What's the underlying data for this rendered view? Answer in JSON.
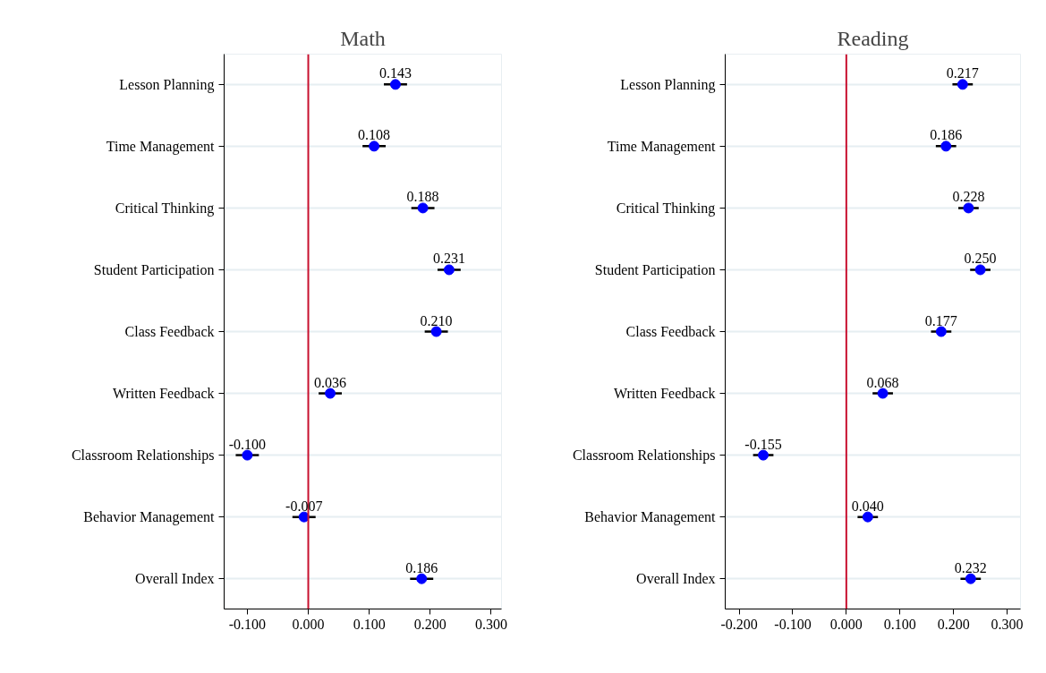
{
  "chart_data": [
    {
      "type": "scatter",
      "title": "Math",
      "categories": [
        "Lesson Planning",
        "Time Management",
        "Critical Thinking",
        "Student Participation",
        "Class Feedback",
        "Written Feedback",
        "Classroom Relationships",
        "Behavior Management",
        "Overall Index"
      ],
      "series": [
        {
          "color": "#0000ff",
          "values": [
            0.143,
            0.108,
            0.188,
            0.231,
            0.21,
            0.036,
            -0.1,
            -0.007,
            0.186
          ],
          "value_labels": [
            "0.143",
            "0.108",
            "0.188",
            "0.231",
            "0.210",
            "0.036",
            "-0.100",
            "-0.007",
            "0.186"
          ],
          "errors": [
            0.019,
            0.019,
            0.019,
            0.019,
            0.019,
            0.019,
            0.019,
            0.019,
            0.019
          ]
        }
      ],
      "orientation": "horizontal",
      "xlim": [
        -0.138,
        0.317
      ],
      "xticks": [
        {
          "value": -0.1,
          "label": "-0.100"
        },
        {
          "value": 0,
          "label": "0.000"
        },
        {
          "value": 0.1,
          "label": "0.100"
        },
        {
          "value": 0.2,
          "label": "0.200"
        },
        {
          "value": 0.3,
          "label": "0.300"
        }
      ],
      "ref_lines": [
        {
          "axis": "x",
          "value": 0,
          "color": "#c8102e"
        }
      ],
      "grid": "y",
      "marker": "circle"
    },
    {
      "type": "scatter",
      "title": "Reading",
      "categories": [
        "Lesson Planning",
        "Time Management",
        "Critical Thinking",
        "Student Participation",
        "Class Feedback",
        "Written Feedback",
        "Classroom Relationships",
        "Behavior Management",
        "Overall Index"
      ],
      "series": [
        {
          "color": "#0000ff",
          "values": [
            0.217,
            0.186,
            0.228,
            0.25,
            0.177,
            0.068,
            -0.155,
            0.04,
            0.232
          ],
          "value_labels": [
            "0.217",
            "0.186",
            "0.228",
            "0.250",
            "0.177",
            "0.068",
            "-0.155",
            "0.040",
            "0.232"
          ],
          "errors": [
            0.019,
            0.019,
            0.019,
            0.019,
            0.019,
            0.019,
            0.019,
            0.019,
            0.019
          ]
        }
      ],
      "orientation": "horizontal",
      "xlim": [
        -0.226,
        0.325
      ],
      "xticks": [
        {
          "value": -0.2,
          "label": "-0.200"
        },
        {
          "value": -0.1,
          "label": "-0.100"
        },
        {
          "value": 0,
          "label": "0.000"
        },
        {
          "value": 0.1,
          "label": "0.100"
        },
        {
          "value": 0.2,
          "label": "0.200"
        },
        {
          "value": 0.3,
          "label": "0.300"
        }
      ],
      "ref_lines": [
        {
          "axis": "x",
          "value": 0,
          "color": "#c8102e"
        }
      ],
      "grid": "y",
      "marker": "circle"
    }
  ]
}
